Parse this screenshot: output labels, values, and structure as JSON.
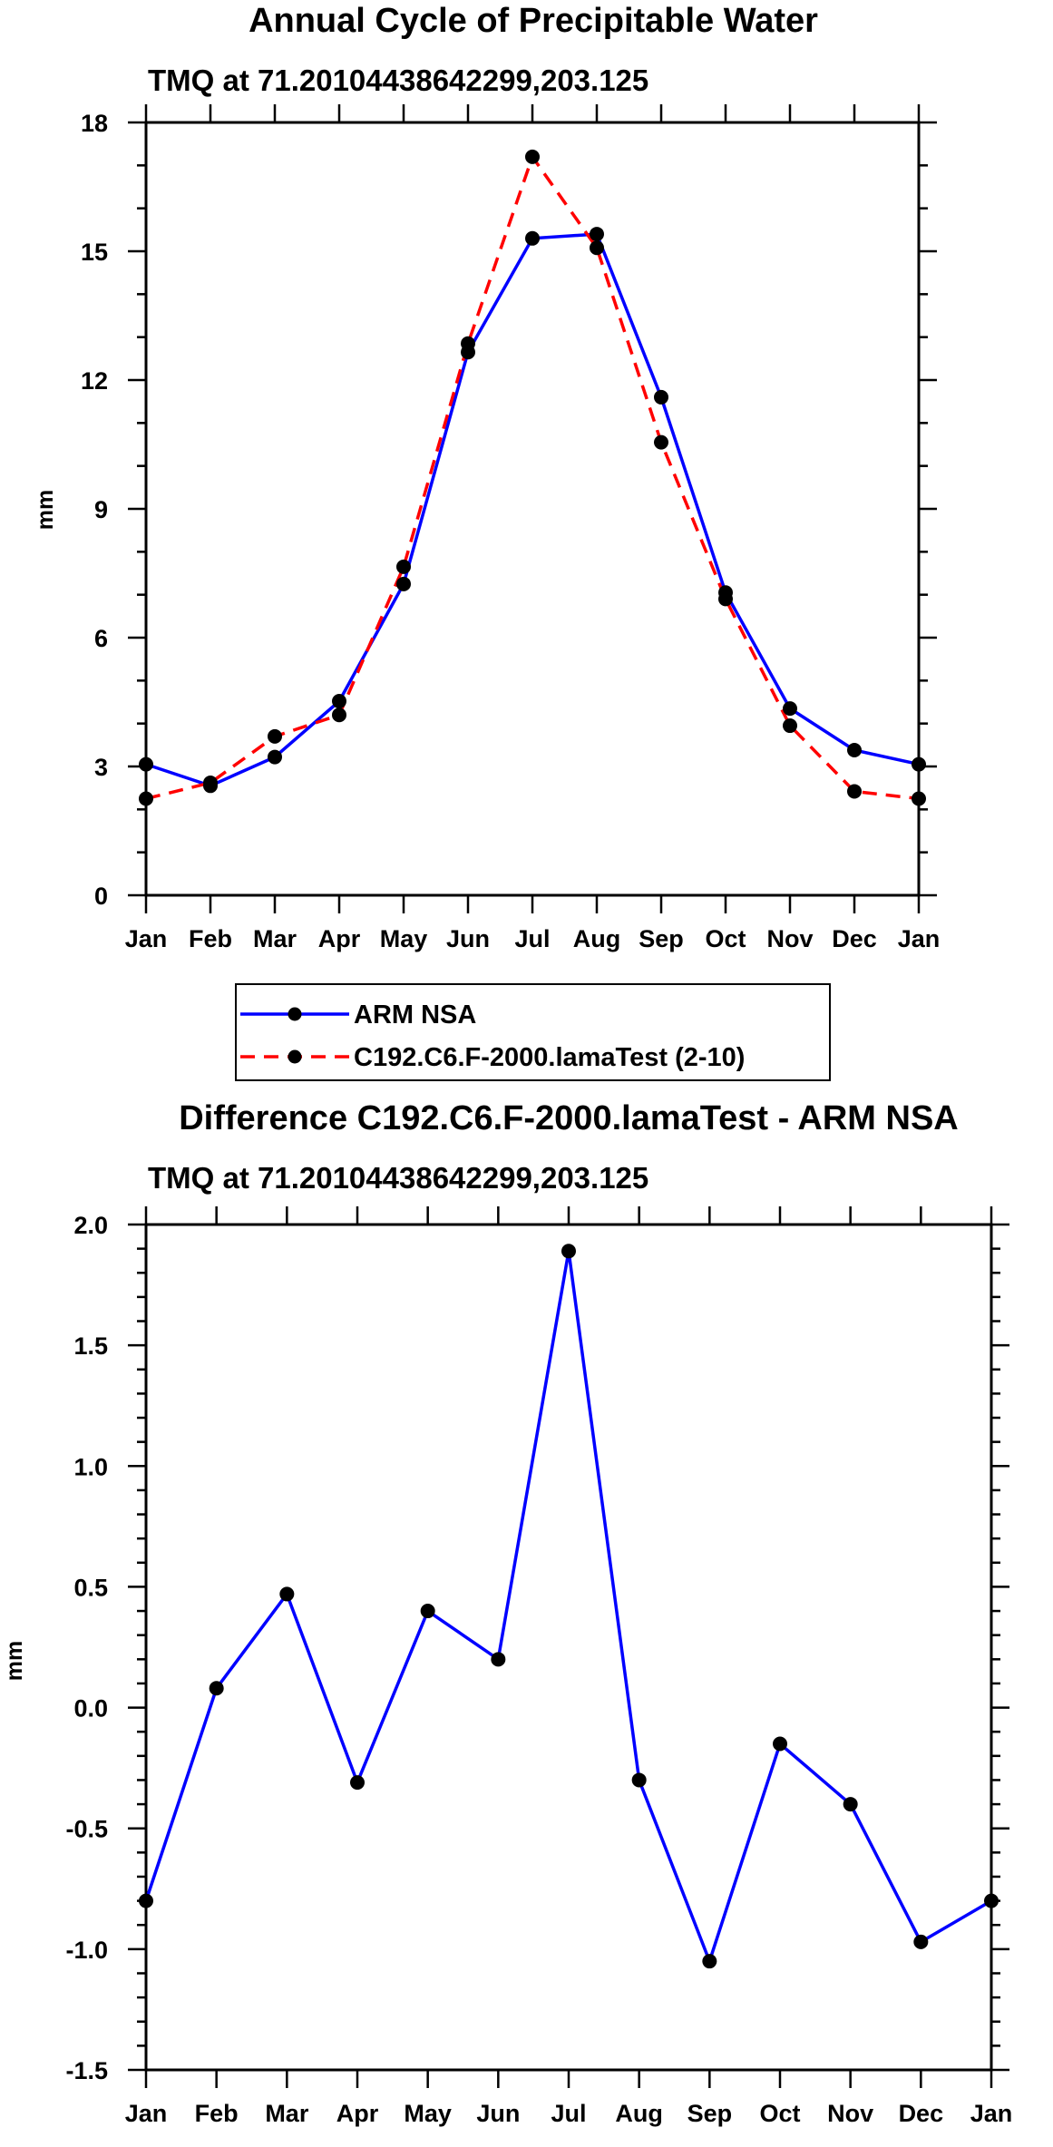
{
  "chart_data": [
    {
      "type": "line",
      "title": "Annual Cycle of Precipitable Water",
      "subtitle": "TMQ at 71.20104438642299,203.125",
      "xlabel": "",
      "ylabel": "mm",
      "categories": [
        "Jan",
        "Feb",
        "Mar",
        "Apr",
        "May",
        "Jun",
        "Jul",
        "Aug",
        "Sep",
        "Oct",
        "Nov",
        "Dec",
        "Jan"
      ],
      "ylim": [
        0,
        18
      ],
      "yticks": [
        "0",
        "3",
        "6",
        "9",
        "12",
        "15",
        "18"
      ],
      "series": [
        {
          "name": "ARM NSA",
          "color": "#0000ff",
          "dash": "solid",
          "values": [
            3.05,
            2.55,
            3.22,
            4.52,
            7.25,
            12.65,
            15.3,
            15.4,
            11.6,
            7.05,
            4.35,
            3.38,
            3.05
          ]
        },
        {
          "name": "C192.C6.F-2000.lamaTest (2-10)",
          "color": "#ff0000",
          "dash": "dashed",
          "values": [
            2.25,
            2.62,
            3.7,
            4.2,
            7.65,
            12.85,
            17.2,
            15.08,
            10.55,
            6.9,
            3.95,
            2.42,
            2.25
          ]
        }
      ],
      "legend": [
        "ARM NSA",
        "C192.C6.F-2000.lamaTest (2-10)"
      ]
    },
    {
      "type": "line",
      "title": "Difference C192.C6.F-2000.lamaTest - ARM NSA",
      "subtitle": "TMQ at 71.20104438642299,203.125",
      "xlabel": "",
      "ylabel": "mm",
      "categories": [
        "Jan",
        "Feb",
        "Mar",
        "Apr",
        "May",
        "Jun",
        "Jul",
        "Aug",
        "Sep",
        "Oct",
        "Nov",
        "Dec",
        "Jan"
      ],
      "ylim": [
        -1.5,
        2.0
      ],
      "yticks": [
        "-1.5",
        "-1.0",
        "-0.5",
        "0.0",
        "0.5",
        "1.0",
        "1.5",
        "2.0"
      ],
      "series": [
        {
          "name": "Difference",
          "color": "#0000ff",
          "dash": "solid",
          "values": [
            -0.8,
            0.08,
            0.47,
            -0.31,
            0.4,
            0.2,
            1.89,
            -0.3,
            -1.05,
            -0.15,
            -0.4,
            -0.97,
            -0.8
          ]
        }
      ]
    }
  ]
}
